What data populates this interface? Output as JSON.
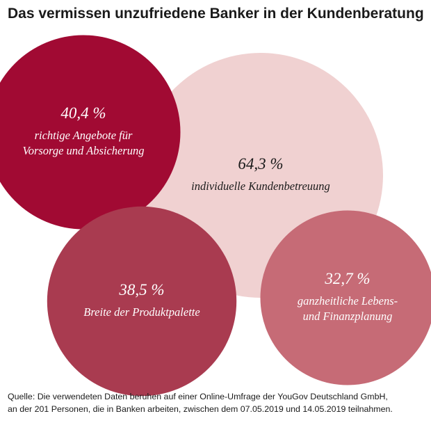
{
  "chart_data": {
    "type": "bubble",
    "title": "Das vermissen unzufriedene Banker in der Kundenberatung",
    "unit": "%",
    "items": [
      {
        "label": "individuelle Kundenbetreuung",
        "label_lines": [
          "individuelle Kundenbetreuung"
        ],
        "value": 64.3,
        "value_text": "64,3 %",
        "color": "#f0d1d1",
        "text_color": "#1a1a1a"
      },
      {
        "label": "richtige Angebote für Vorsorge und Absicherung",
        "label_lines": [
          "richtige Angebote für",
          "Vorsorge und Absicherung"
        ],
        "value": 40.4,
        "value_text": "40,4 %",
        "color": "#a10a33",
        "text_color": "#ffffff"
      },
      {
        "label": "Breite der Produktpalette",
        "label_lines": [
          "Breite der Produktpalette"
        ],
        "value": 38.5,
        "value_text": "38,5 %",
        "color": "#a93b50",
        "text_color": "#ffffff"
      },
      {
        "label": "ganzheitliche Lebens- und Finanzplanung",
        "label_lines": [
          "ganzheitliche Lebens-",
          "und Finanzplanung"
        ],
        "value": 32.7,
        "value_text": "32,7 %",
        "color": "#c66b76",
        "text_color": "#ffffff"
      }
    ]
  },
  "source": {
    "line1": "Quelle: Die verwendeten Daten beruhen auf einer Online-Umfrage der YouGov Deutschland GmbH,",
    "line2": "an der 201 Personen, die in Banken arbeiten, zwischen dem 07.05.2019 und 14.05.2019 teilnahmen."
  }
}
